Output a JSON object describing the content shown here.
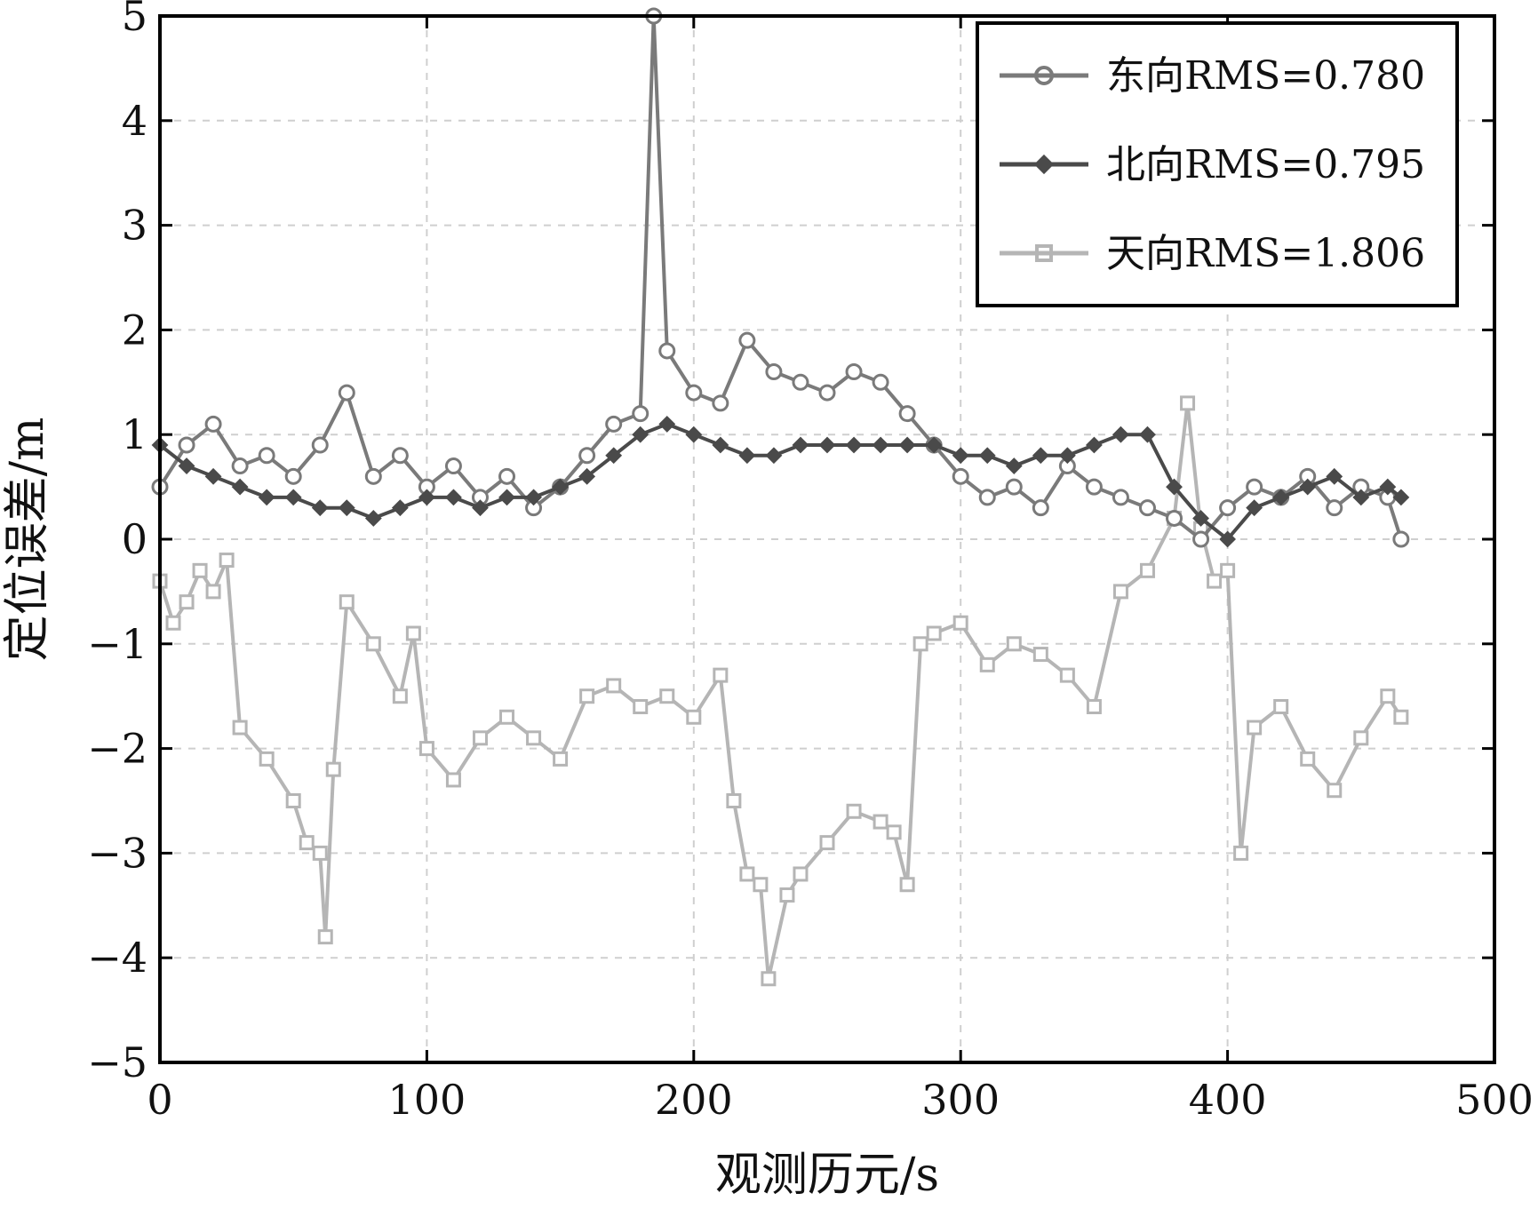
{
  "chart_data": {
    "type": "line",
    "title": "",
    "xlabel": "观测历元/s",
    "ylabel": "定位误差/m",
    "xlim": [
      0,
      500
    ],
    "ylim": [
      -5,
      5
    ],
    "xticks": [
      0,
      100,
      200,
      300,
      400,
      500
    ],
    "xtick_labels": [
      "0",
      "100",
      "200",
      "300",
      "400",
      "500"
    ],
    "yticks": [
      5,
      4,
      3,
      2,
      1,
      0,
      -1,
      -2,
      -3,
      -4,
      -5
    ],
    "ytick_labels": [
      "5",
      "4",
      "3",
      "2",
      "1",
      "0",
      "−1",
      "−2",
      "−3",
      "−4",
      "−5"
    ],
    "grid": true,
    "legend_position": "top-right",
    "series": [
      {
        "name": "东向RMS=0.780",
        "marker": "circle",
        "color": "#7a7a7a",
        "x": [
          0,
          10,
          20,
          30,
          40,
          50,
          60,
          70,
          80,
          90,
          100,
          110,
          120,
          130,
          140,
          150,
          160,
          170,
          180,
          185,
          190,
          200,
          210,
          220,
          230,
          240,
          250,
          260,
          270,
          280,
          290,
          300,
          310,
          320,
          330,
          340,
          350,
          360,
          370,
          380,
          390,
          400,
          410,
          420,
          430,
          440,
          450,
          460,
          465
        ],
        "y": [
          0.5,
          0.9,
          1.1,
          0.7,
          0.8,
          0.6,
          0.9,
          1.4,
          0.6,
          0.8,
          0.5,
          0.7,
          0.4,
          0.6,
          0.3,
          0.5,
          0.8,
          1.1,
          1.2,
          5.0,
          1.8,
          1.4,
          1.3,
          1.9,
          1.6,
          1.5,
          1.4,
          1.6,
          1.5,
          1.2,
          0.9,
          0.6,
          0.4,
          0.5,
          0.3,
          0.7,
          0.5,
          0.4,
          0.3,
          0.2,
          0.0,
          0.3,
          0.5,
          0.4,
          0.6,
          0.3,
          0.5,
          0.4,
          0.0
        ]
      },
      {
        "name": "北向RMS=0.795",
        "marker": "diamond",
        "color": "#4a4a4a",
        "x": [
          0,
          10,
          20,
          30,
          40,
          50,
          60,
          70,
          80,
          90,
          100,
          110,
          120,
          130,
          140,
          150,
          160,
          170,
          180,
          190,
          200,
          210,
          220,
          230,
          240,
          250,
          260,
          270,
          280,
          290,
          300,
          310,
          320,
          330,
          340,
          350,
          360,
          370,
          380,
          390,
          400,
          410,
          420,
          430,
          440,
          450,
          460,
          465
        ],
        "y": [
          0.9,
          0.7,
          0.6,
          0.5,
          0.4,
          0.4,
          0.3,
          0.3,
          0.2,
          0.3,
          0.4,
          0.4,
          0.3,
          0.4,
          0.4,
          0.5,
          0.6,
          0.8,
          1.0,
          1.1,
          1.0,
          0.9,
          0.8,
          0.8,
          0.9,
          0.9,
          0.9,
          0.9,
          0.9,
          0.9,
          0.8,
          0.8,
          0.7,
          0.8,
          0.8,
          0.9,
          1.0,
          1.0,
          0.5,
          0.2,
          0.0,
          0.3,
          0.4,
          0.5,
          0.6,
          0.4,
          0.5,
          0.4
        ]
      },
      {
        "name": "天向RMS=1.806",
        "marker": "square",
        "color": "#b5b5b5",
        "x": [
          0,
          5,
          10,
          15,
          20,
          25,
          30,
          40,
          50,
          55,
          60,
          62,
          65,
          70,
          80,
          90,
          95,
          100,
          110,
          120,
          130,
          140,
          150,
          160,
          170,
          180,
          190,
          200,
          210,
          215,
          220,
          225,
          228,
          235,
          240,
          250,
          260,
          270,
          275,
          280,
          285,
          290,
          300,
          310,
          320,
          330,
          340,
          350,
          360,
          370,
          380,
          385,
          390,
          395,
          400,
          405,
          410,
          420,
          430,
          440,
          450,
          460,
          465
        ],
        "y": [
          -0.4,
          -0.8,
          -0.6,
          -0.3,
          -0.5,
          -0.2,
          -1.8,
          -2.1,
          -2.5,
          -2.9,
          -3.0,
          -3.8,
          -2.2,
          -0.6,
          -1.0,
          -1.5,
          -0.9,
          -2.0,
          -2.3,
          -1.9,
          -1.7,
          -1.9,
          -2.1,
          -1.5,
          -1.4,
          -1.6,
          -1.5,
          -1.7,
          -1.3,
          -2.5,
          -3.2,
          -3.3,
          -4.2,
          -3.4,
          -3.2,
          -2.9,
          -2.6,
          -2.7,
          -2.8,
          -3.3,
          -1.0,
          -0.9,
          -0.8,
          -1.2,
          -1.0,
          -1.1,
          -1.3,
          -1.6,
          -0.5,
          -0.3,
          0.2,
          1.3,
          0.1,
          -0.4,
          -0.3,
          -3.0,
          -1.8,
          -1.6,
          -2.1,
          -2.4,
          -1.9,
          -1.5,
          -1.7
        ]
      }
    ]
  }
}
